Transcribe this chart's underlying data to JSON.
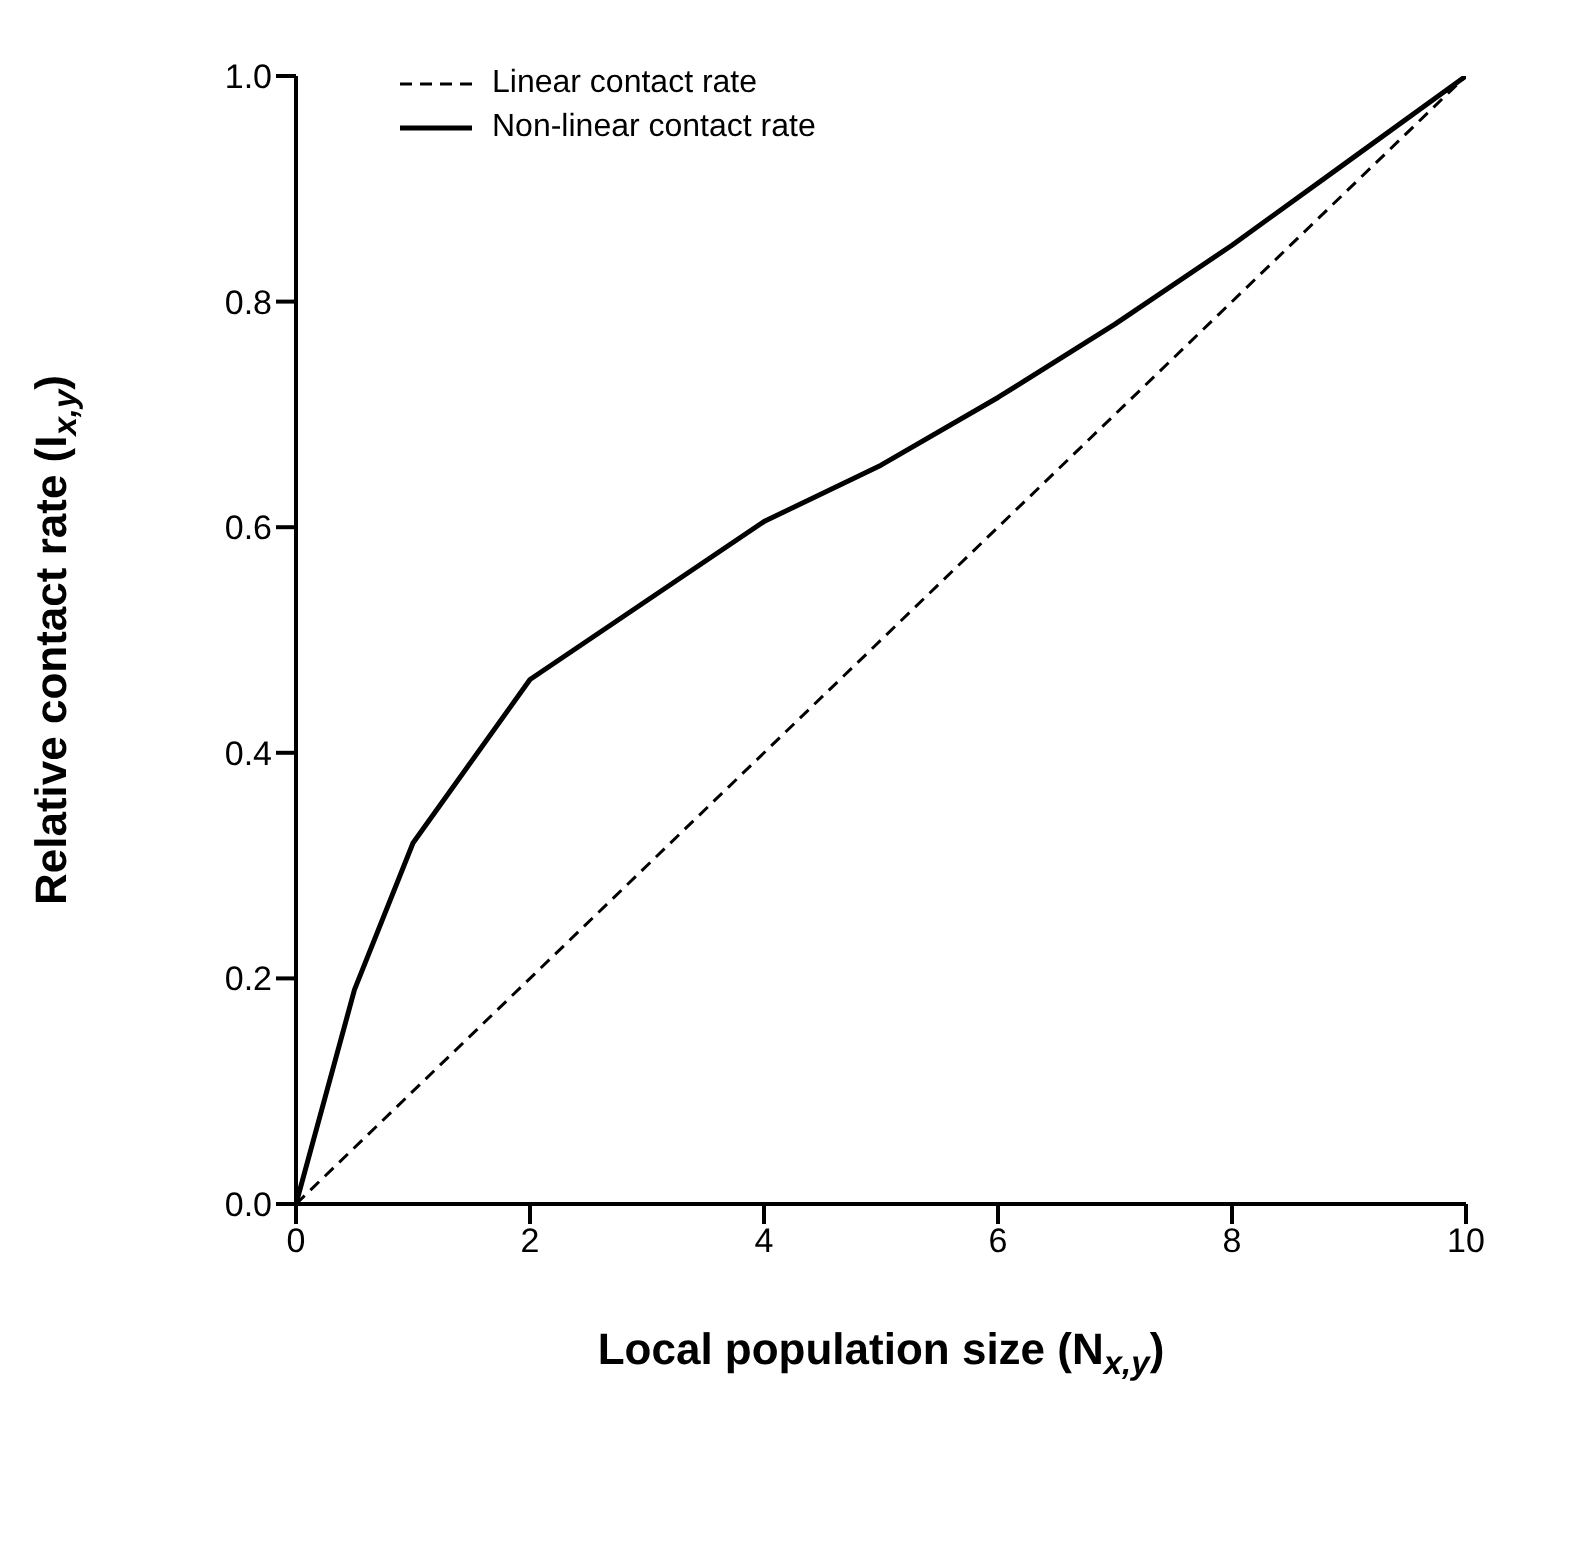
{
  "chart_data": {
    "type": "line",
    "xlabel": "Local population size (N$_{x,y}$)",
    "ylabel": "Relative contact rate (I$_{x,y}$)",
    "xlim": [
      0,
      10
    ],
    "xticks": [
      0,
      2,
      4,
      6,
      8,
      10
    ],
    "ylim": [
      0,
      1
    ],
    "yticks": [
      {
        "value": 0,
        "label": "0.0"
      },
      {
        "value": 0.2,
        "label": "0.2"
      },
      {
        "value": 0.4,
        "label": "0.4"
      },
      {
        "value": 0.6,
        "label": "0.6"
      },
      {
        "value": 0.8,
        "label": "0.8"
      },
      {
        "value": 1,
        "label": "1.0"
      }
    ],
    "grid": false,
    "legend": "top left",
    "marker": "none",
    "series": [
      {
        "name": "Linear contact rate",
        "color": "#000000",
        "line_style": "dashed",
        "x": [
          0,
          10
        ],
        "values": [
          0,
          1
        ]
      },
      {
        "name": "Non-linear contact rate",
        "color": "#000000",
        "line_style": "solid",
        "x": [
          0,
          0.5,
          1,
          2,
          3,
          4,
          5,
          6,
          7,
          8,
          9,
          10
        ],
        "values": [
          0,
          0.19,
          0.32,
          0.465,
          0.535,
          0.605,
          0.655,
          0.715,
          0.78,
          0.85,
          0.925,
          1
        ]
      }
    ]
  }
}
